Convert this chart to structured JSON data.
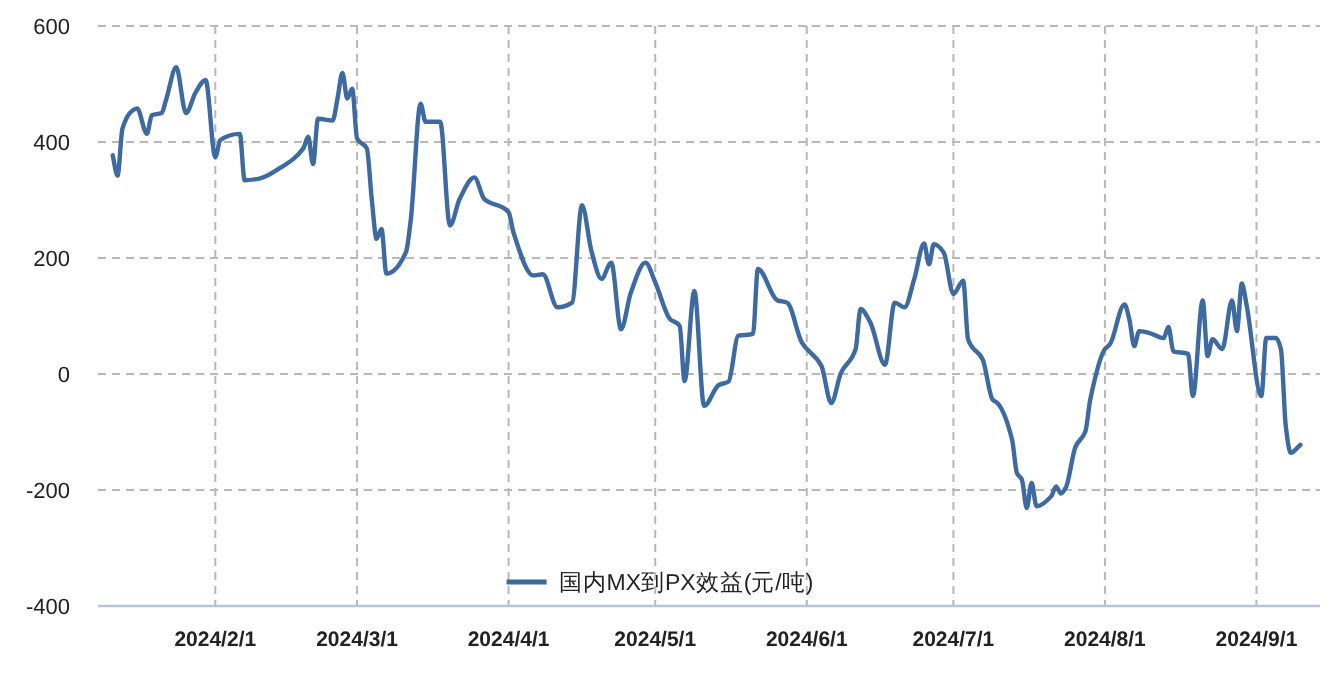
{
  "chart_data": {
    "type": "line",
    "xlim": [
      "2024-01-08",
      "2024-09-14"
    ],
    "ylim": [
      -400,
      600
    ],
    "yticks": [
      -400,
      -200,
      0,
      200,
      400,
      600
    ],
    "xticks": [
      {
        "value": "2024-02-01",
        "label": "2024/2/1"
      },
      {
        "value": "2024-03-01",
        "label": "2024/3/1"
      },
      {
        "value": "2024-04-01",
        "label": "2024/4/1"
      },
      {
        "value": "2024-05-01",
        "label": "2024/5/1"
      },
      {
        "value": "2024-06-01",
        "label": "2024/6/1"
      },
      {
        "value": "2024-07-01",
        "label": "2024/7/1"
      },
      {
        "value": "2024-08-01",
        "label": "2024/8/1"
      },
      {
        "value": "2024-09-01",
        "label": "2024/9/1"
      }
    ],
    "grid": true,
    "legend": "bottom",
    "line_style": "solid",
    "x": [
      "2024-01-11",
      "2024-01-12",
      "2024-01-13",
      "2024-01-15",
      "2024-01-16",
      "2024-01-18",
      "2024-01-19",
      "2024-01-21",
      "2024-01-22",
      "2024-01-24",
      "2024-01-26",
      "2024-01-28",
      "2024-01-30",
      "2024-02-01",
      "2024-02-02",
      "2024-02-06",
      "2024-02-07",
      "2024-02-10",
      "2024-02-14",
      "2024-02-19",
      "2024-02-20",
      "2024-02-21",
      "2024-02-22",
      "2024-02-25",
      "2024-02-26",
      "2024-02-27",
      "2024-02-28",
      "2024-02-29",
      "2024-03-01",
      "2024-03-03",
      "2024-03-04",
      "2024-03-05",
      "2024-03-06",
      "2024-03-07",
      "2024-03-11",
      "2024-03-12",
      "2024-03-14",
      "2024-03-15",
      "2024-03-18",
      "2024-03-20",
      "2024-03-22",
      "2024-03-25",
      "2024-03-27",
      "2024-04-01",
      "2024-04-02",
      "2024-04-06",
      "2024-04-08",
      "2024-04-11",
      "2024-04-14",
      "2024-04-16",
      "2024-04-18",
      "2024-04-20",
      "2024-04-22",
      "2024-04-24",
      "2024-04-26",
      "2024-04-29",
      "2024-05-01",
      "2024-05-04",
      "2024-05-06",
      "2024-05-07",
      "2024-05-09",
      "2024-05-11",
      "2024-05-14",
      "2024-05-16",
      "2024-05-18",
      "2024-05-21",
      "2024-05-22",
      "2024-05-26",
      "2024-05-28",
      "2024-05-31",
      "2024-06-04",
      "2024-06-06",
      "2024-06-08",
      "2024-06-11",
      "2024-06-12",
      "2024-06-14",
      "2024-06-17",
      "2024-06-19",
      "2024-06-21",
      "2024-06-23",
      "2024-06-25",
      "2024-06-26",
      "2024-06-27",
      "2024-06-29",
      "2024-07-01",
      "2024-07-03",
      "2024-07-04",
      "2024-07-07",
      "2024-07-09",
      "2024-07-10",
      "2024-07-13",
      "2024-07-14",
      "2024-07-15",
      "2024-07-16",
      "2024-07-17",
      "2024-07-18",
      "2024-07-21",
      "2024-07-22",
      "2024-07-23",
      "2024-07-24",
      "2024-07-26",
      "2024-07-28",
      "2024-07-29",
      "2024-08-01",
      "2024-08-02",
      "2024-08-05",
      "2024-08-06",
      "2024-08-07",
      "2024-08-08",
      "2024-08-10",
      "2024-08-13",
      "2024-08-14",
      "2024-08-15",
      "2024-08-18",
      "2024-08-19",
      "2024-08-21",
      "2024-08-22",
      "2024-08-23",
      "2024-08-25",
      "2024-08-27",
      "2024-08-28",
      "2024-08-29",
      "2024-08-30",
      "2024-09-02",
      "2024-09-03",
      "2024-09-05",
      "2024-09-06",
      "2024-09-07",
      "2024-09-08",
      "2024-09-10"
    ],
    "series": [
      {
        "name": "国内MX到PX效益(元/吨)",
        "color": "#3d6aa0",
        "values": [
          377,
          342,
          423,
          454,
          458,
          414,
          446,
          450,
          475,
          529,
          450,
          486,
          507,
          374,
          403,
          414,
          334,
          337,
          354,
          389,
          409,
          362,
          440,
          437,
          475,
          519,
          475,
          492,
          406,
          389,
          302,
          233,
          250,
          173,
          210,
          267,
          466,
          435,
          435,
          256,
          302,
          339,
          302,
          279,
          244,
          170,
          172,
          115,
          123,
          291,
          210,
          164,
          192,
          77,
          140,
          192,
          158,
          95,
          83,
          -12,
          143,
          -55,
          -19,
          -13,
          66,
          69,
          181,
          127,
          123,
          54,
          14,
          -50,
          2,
          43,
          112,
          89,
          16,
          123,
          115,
          164,
          225,
          189,
          224,
          210,
          138,
          161,
          60,
          25,
          -44,
          -50,
          -113,
          -171,
          -182,
          -231,
          -188,
          -228,
          -211,
          -194,
          -206,
          -196,
          -125,
          -99,
          -44,
          43,
          51,
          120,
          94,
          48,
          74,
          71,
          62,
          81,
          39,
          35,
          -38,
          127,
          31,
          60,
          43,
          127,
          74,
          156,
          118,
          -38,
          62,
          62,
          43,
          -90,
          -136,
          -122
        ]
      }
    ]
  }
}
